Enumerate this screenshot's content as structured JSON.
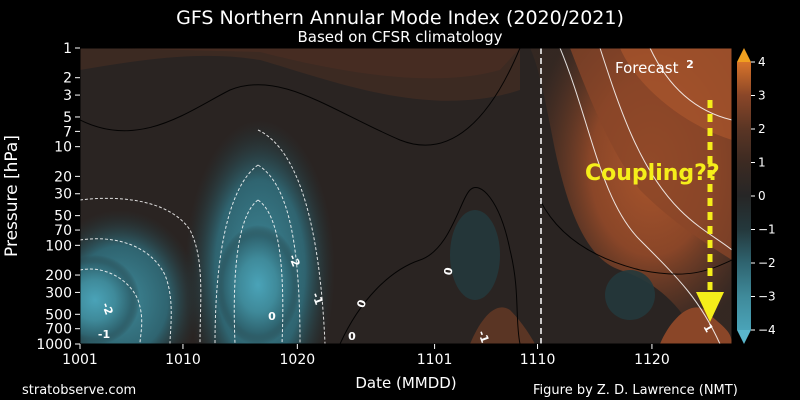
{
  "chart_data": {
    "type": "heatmap",
    "title": "GFS Northern Annular Mode Index (2020/2021)",
    "subtitle": "Based on CFSR climatology",
    "xlabel": "Date (MMDD)",
    "ylabel": "Pressure [hPa]",
    "x_ticks": [
      "1001",
      "1010",
      "1020",
      "1101",
      "1110",
      "1120"
    ],
    "y_ticks": [
      "1",
      "2",
      "3",
      "5",
      "7",
      "10",
      "20",
      "30",
      "50",
      "70",
      "100",
      "200",
      "300",
      "500",
      "700",
      "1000"
    ],
    "y_scale": "log",
    "ylim": [
      1000,
      1
    ],
    "colorbar": {
      "ticks": [
        "4",
        "3",
        "2",
        "1",
        "0",
        "−1",
        "−2",
        "−3",
        "−4"
      ],
      "range": [
        -4,
        4
      ],
      "colors": {
        "neg4": "#4aa3b8",
        "neg3": "#3f8a9a",
        "neg2": "#2f6470",
        "neg1": "#24383c",
        "zero": "#262626",
        "pos1": "#3c2a22",
        "pos2": "#5a3524",
        "pos3": "#8a4628",
        "pos4": "#d8742a",
        "top_arrow": "#f0a020",
        "bottom_arrow": "#5ab6cc"
      }
    },
    "forecast_start": "1109",
    "forecast_label": "Forecast",
    "annotation": "Coupling??",
    "contour_labels": [
      "-2",
      "-2",
      "-1",
      "-1",
      "0",
      "0",
      "0",
      "2",
      "1",
      "-1",
      "0"
    ]
  },
  "credits": {
    "left": "stratobserve.com",
    "right": "Figure by Z. D. Lawrence (NMT)"
  },
  "colors": {
    "background": "#000000",
    "annotation": "#f5ee1a",
    "forecast_line": "#ffffff"
  }
}
